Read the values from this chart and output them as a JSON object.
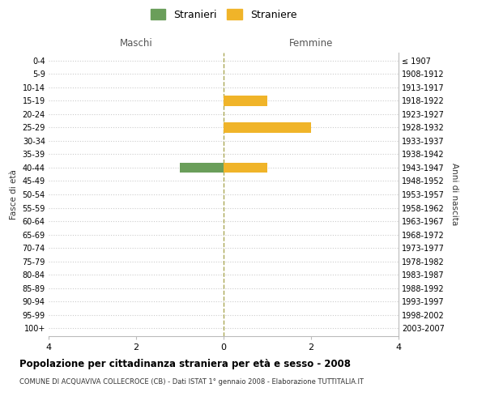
{
  "age_groups": [
    "0-4",
    "5-9",
    "10-14",
    "15-19",
    "20-24",
    "25-29",
    "30-34",
    "35-39",
    "40-44",
    "45-49",
    "50-54",
    "55-59",
    "60-64",
    "65-69",
    "70-74",
    "75-79",
    "80-84",
    "85-89",
    "90-94",
    "95-99",
    "100+"
  ],
  "birth_years": [
    "2003-2007",
    "1998-2002",
    "1993-1997",
    "1988-1992",
    "1983-1987",
    "1978-1982",
    "1973-1977",
    "1968-1972",
    "1963-1967",
    "1958-1962",
    "1953-1957",
    "1948-1952",
    "1943-1947",
    "1938-1942",
    "1933-1937",
    "1928-1932",
    "1923-1927",
    "1918-1922",
    "1913-1917",
    "1908-1912",
    "≤ 1907"
  ],
  "stranieri": [
    0,
    0,
    0,
    0,
    0,
    0,
    0,
    0,
    1,
    0,
    0,
    0,
    0,
    0,
    0,
    0,
    0,
    0,
    0,
    0,
    0
  ],
  "straniere": [
    0,
    0,
    0,
    1,
    0,
    2,
    0,
    0,
    1,
    0,
    0,
    0,
    0,
    0,
    0,
    0,
    0,
    0,
    0,
    0,
    0
  ],
  "color_stranieri": "#6a9e5a",
  "color_straniere": "#f0b429",
  "xlim": 4,
  "xticks": [
    -4,
    -2,
    0,
    2,
    4
  ],
  "xtick_labels": [
    "4",
    "2",
    "0",
    "2",
    "4"
  ],
  "title_main": "Popolazione per cittadinanza straniera per età e sesso - 2008",
  "title_sub": "COMUNE DI ACQUAVIVA COLLECROCE (CB) - Dati ISTAT 1° gennaio 2008 - Elaborazione TUTTITALIA.IT",
  "label_maschi": "Maschi",
  "label_femmine": "Femmine",
  "ylabel_left": "Fasce di età",
  "ylabel_right": "Anni di nascita",
  "legend_stranieri": "Stranieri",
  "legend_straniere": "Straniere",
  "bg_color": "#ffffff",
  "grid_color": "#cccccc",
  "bar_height": 0.75
}
